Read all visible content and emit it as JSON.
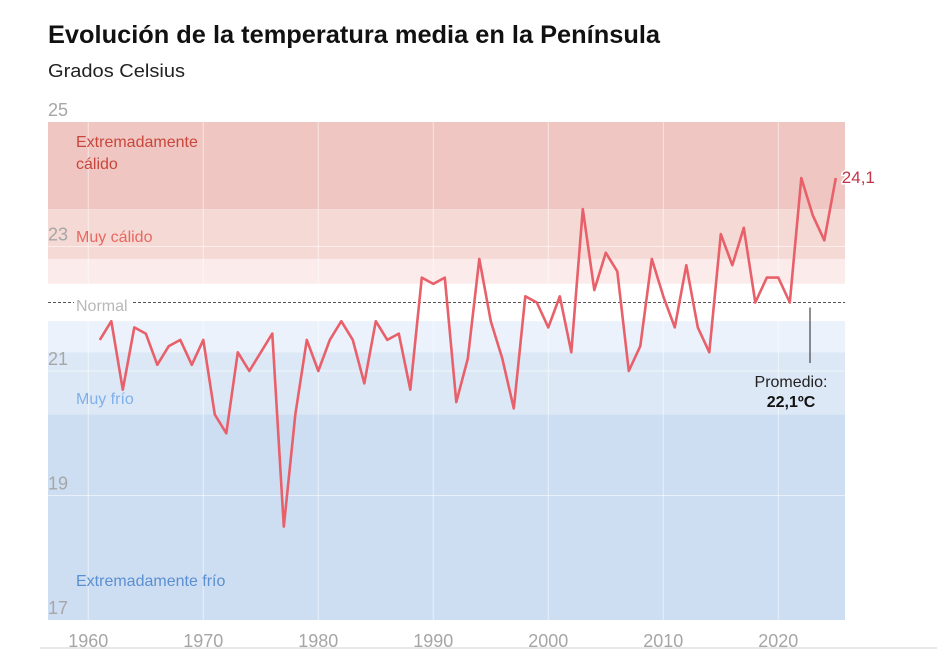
{
  "chart_data": {
    "type": "line",
    "title": "Evolución de la temperatura media en la Península",
    "subtitle": "Grados Celsius",
    "xlabel": "",
    "ylabel": "",
    "xlim": [
      1956.5,
      2025.8
    ],
    "ylim": [
      17,
      25
    ],
    "x_ticks": [
      1960,
      1970,
      1980,
      1990,
      2000,
      2010,
      2020
    ],
    "y_ticks": [
      17,
      19,
      21,
      23,
      25
    ],
    "grid": true,
    "line_color": "#e8606a",
    "x": [
      1961,
      1962,
      1963,
      1964,
      1965,
      1966,
      1967,
      1968,
      1969,
      1970,
      1971,
      1972,
      1973,
      1974,
      1975,
      1976,
      1977,
      1978,
      1979,
      1980,
      1981,
      1982,
      1983,
      1984,
      1985,
      1986,
      1987,
      1988,
      1989,
      1990,
      1991,
      1992,
      1993,
      1994,
      1995,
      1996,
      1997,
      1998,
      1999,
      2000,
      2001,
      2002,
      2003,
      2004,
      2005,
      2006,
      2007,
      2008,
      2009,
      2010,
      2011,
      2012,
      2013,
      2014,
      2015,
      2016,
      2017,
      2018,
      2019,
      2020,
      2021,
      2022,
      2023,
      2024,
      2025
    ],
    "values": [
      21.5,
      21.8,
      20.7,
      21.7,
      21.6,
      21.1,
      21.4,
      21.5,
      21.1,
      21.5,
      20.3,
      20.0,
      21.3,
      21.0,
      21.3,
      21.6,
      18.5,
      20.3,
      21.5,
      21.0,
      21.5,
      21.8,
      21.5,
      20.8,
      21.8,
      21.5,
      21.6,
      20.7,
      22.5,
      22.4,
      22.5,
      20.5,
      21.2,
      22.8,
      21.8,
      21.2,
      20.4,
      22.2,
      22.1,
      21.7,
      22.2,
      21.3,
      23.6,
      22.3,
      22.9,
      22.6,
      21.0,
      21.4,
      22.8,
      22.2,
      21.7,
      22.7,
      21.7,
      21.3,
      23.2,
      22.7,
      23.3,
      22.1,
      22.5,
      22.5,
      22.1,
      24.1,
      23.5,
      23.1,
      24.1
    ],
    "last_value_label": "24,1",
    "bands": [
      {
        "label": "Extremadamente cálido",
        "from": 23.6,
        "to": 25,
        "color": "#efc6c1",
        "label_color": "#c8463c"
      },
      {
        "label": "Muy cálido",
        "from": 22.8,
        "to": 23.6,
        "color": "#f5d9d5",
        "label_color": "#e8685f"
      },
      {
        "label": "",
        "from": 22.4,
        "to": 22.8,
        "color": "#fbeceb",
        "label_color": ""
      },
      {
        "label": "Normal",
        "from": 21.8,
        "to": 22.4,
        "color": "#ffffff",
        "label_color": "#b8b8b8"
      },
      {
        "label": "",
        "from": 21.3,
        "to": 21.8,
        "color": "#ebf2fb",
        "label_color": ""
      },
      {
        "label": "Muy frío",
        "from": 20.3,
        "to": 21.3,
        "color": "#dde8f6",
        "label_color": "#7fb0ea"
      },
      {
        "label": "Extremadamente frío",
        "from": 17,
        "to": 20.3,
        "color": "#cddef2",
        "label_color": "#5b8fd0"
      }
    ],
    "average": {
      "value": 22.1,
      "label": "Promedio:",
      "value_label": "22,1ºC"
    }
  }
}
